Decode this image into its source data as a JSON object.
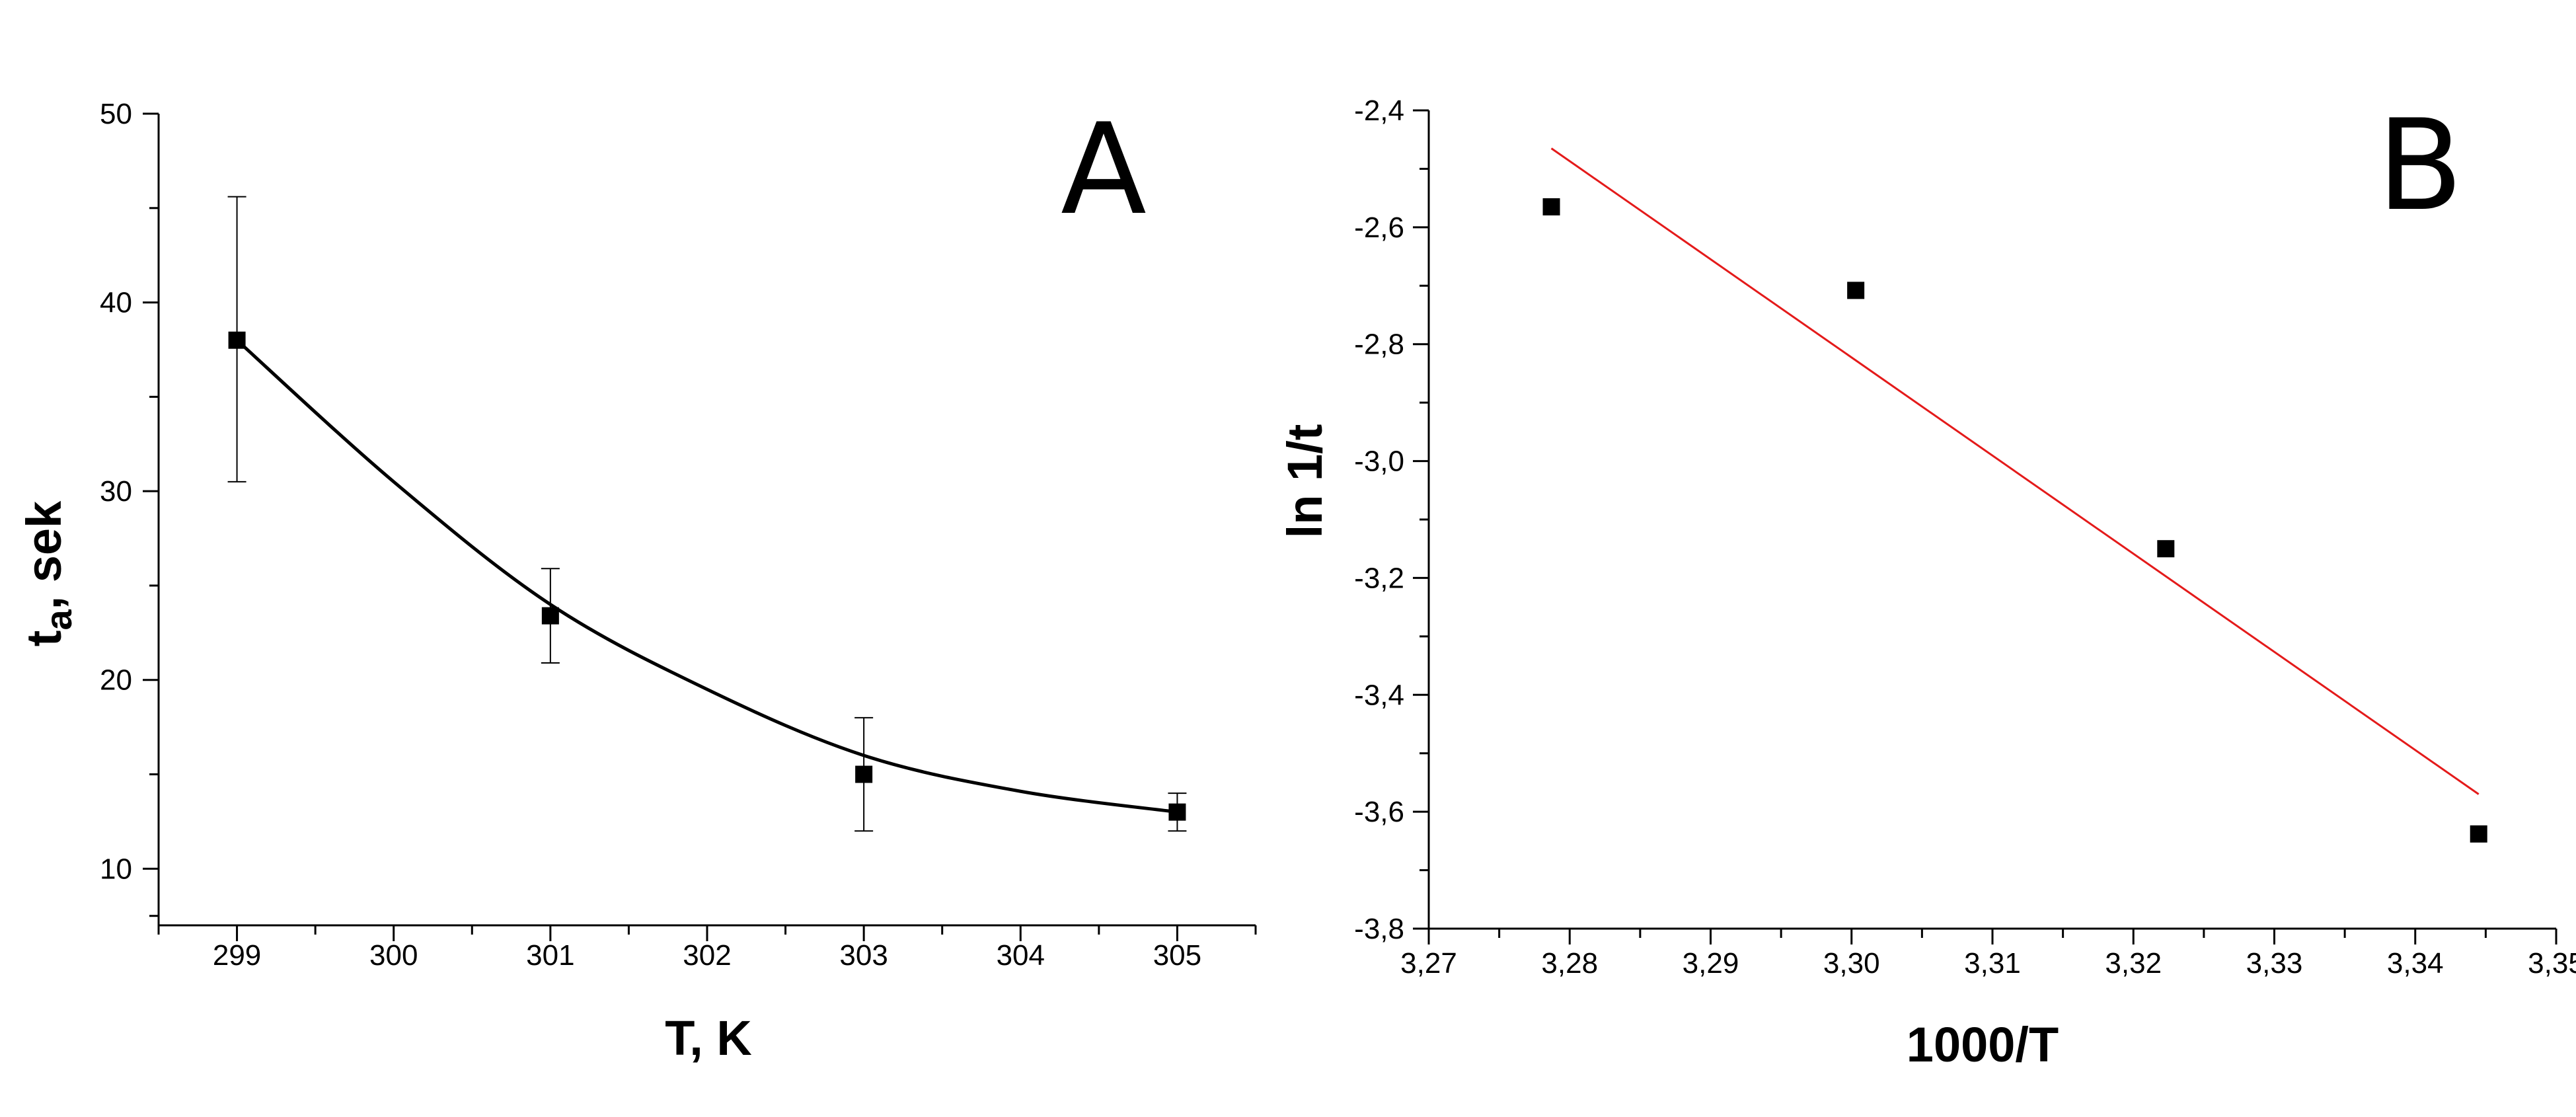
{
  "chart_data": [
    {
      "panel_label": "A",
      "type": "scatter",
      "xlabel": "T, K",
      "ylabel_main": "t",
      "ylabel_sub": "a",
      "ylabel_rest": ", sek",
      "xlim": [
        298.5,
        305.5
      ],
      "ylim": [
        7,
        50
      ],
      "x_ticks": [
        299,
        300,
        301,
        302,
        303,
        304,
        305
      ],
      "x_tick_labels": [
        "299",
        "300",
        "301",
        "302",
        "303",
        "304",
        "305"
      ],
      "y_ticks": [
        10,
        20,
        30,
        40,
        50
      ],
      "y_tick_labels": [
        "10",
        "20",
        "30",
        "40",
        "50"
      ],
      "series": [
        {
          "points": [
            {
              "x": 299,
              "y": 38.0,
              "err_low": 30.5,
              "err_high": 45.6
            },
            {
              "x": 301,
              "y": 23.4,
              "err_low": 20.9,
              "err_high": 25.9
            },
            {
              "x": 303,
              "y": 15.0,
              "err_low": 12.0,
              "err_high": 18.0
            },
            {
              "x": 305,
              "y": 13.0,
              "err_low": 12.0,
              "err_high": 14.0
            }
          ],
          "marker": "square",
          "color": "#000000"
        }
      ],
      "fit": {
        "kind": "smooth-curve",
        "color": "#000000",
        "x": [
          299,
          300,
          301,
          302,
          303,
          304,
          305
        ],
        "y": [
          38.0,
          30.5,
          24.0,
          19.5,
          16.0,
          14.1,
          13.0
        ]
      },
      "grid": false
    },
    {
      "panel_label": "B",
      "type": "scatter",
      "xlabel": "1000/T",
      "ylabel": "ln 1/t",
      "xlim": [
        3.27,
        3.35
      ],
      "ylim": [
        -3.8,
        -2.4
      ],
      "x_ticks": [
        3.27,
        3.28,
        3.29,
        3.3,
        3.31,
        3.32,
        3.33,
        3.34,
        3.35
      ],
      "x_tick_labels": [
        "3,27",
        "3,28",
        "3,29",
        "3,30",
        "3,31",
        "3,32",
        "3,33",
        "3,34",
        "3,35"
      ],
      "y_ticks": [
        -3.8,
        -3.6,
        -3.4,
        -3.2,
        -3.0,
        -2.8,
        -2.6,
        -2.4
      ],
      "y_tick_labels": [
        "-3,8",
        "-3,6",
        "-3,4",
        "-3,2",
        "-3,0",
        "-2,8",
        "-2,6",
        "-2,4"
      ],
      "series": [
        {
          "points": [
            {
              "x": 3.2787,
              "y": -2.565
            },
            {
              "x": 3.3003,
              "y": -2.708
            },
            {
              "x": 3.3223,
              "y": -3.15
            },
            {
              "x": 3.3445,
              "y": -3.638
            }
          ],
          "marker": "square",
          "color": "#000000"
        }
      ],
      "fit": {
        "kind": "linear",
        "color": "#e41a1a",
        "x": [
          3.2787,
          3.3445
        ],
        "y": [
          -2.465,
          -3.57
        ]
      },
      "grid": false
    }
  ]
}
